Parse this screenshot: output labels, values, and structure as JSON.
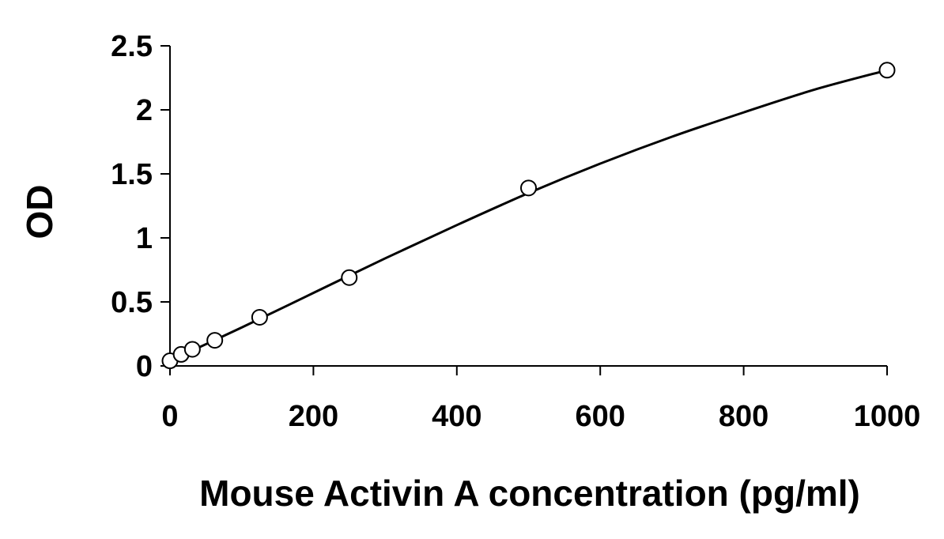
{
  "chart_data": {
    "type": "scatter",
    "title": "",
    "xlabel": "Mouse Activin A concentration (pg/ml)",
    "ylabel": "OD",
    "xlim": [
      0,
      1000
    ],
    "ylim": [
      0,
      2.5
    ],
    "x_ticks": [
      0,
      200,
      400,
      600,
      800,
      1000
    ],
    "y_ticks": [
      0,
      0.5,
      1,
      1.5,
      2,
      2.5
    ],
    "x_tick_labels": [
      "0",
      "200",
      "400",
      "600",
      "800",
      "1000"
    ],
    "y_tick_labels": [
      "0",
      "0.5",
      "1",
      "1.5",
      "2",
      "2.5"
    ],
    "grid": false,
    "legend": "none",
    "series": [
      {
        "marker": "open-circle",
        "x": [
          0,
          15.6,
          31.25,
          62.5,
          125,
          250,
          500,
          1000
        ],
        "y": [
          0.04,
          0.09,
          0.13,
          0.2,
          0.38,
          0.69,
          1.39,
          2.31
        ]
      }
    ],
    "trendline": {
      "type": "polynomial",
      "x": [
        0,
        100,
        200,
        300,
        400,
        500,
        600,
        700,
        800,
        900,
        1000
      ],
      "y": [
        0.04,
        0.3,
        0.57,
        0.84,
        1.1,
        1.35,
        1.58,
        1.79,
        1.98,
        2.16,
        2.31
      ]
    },
    "colors": {
      "axis": "#000000",
      "marker_stroke": "#000000",
      "marker_fill": "#ffffff",
      "line": "#000000"
    }
  }
}
